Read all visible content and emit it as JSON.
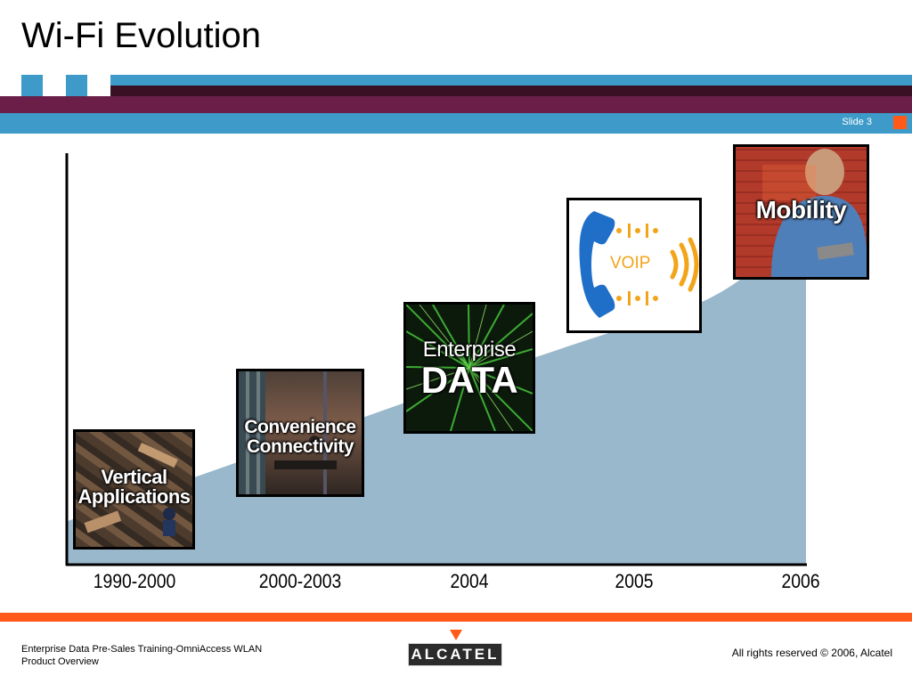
{
  "title": "Wi-Fi Evolution",
  "slide_label": "Slide 3",
  "colors": {
    "brand_blue": "#3e9bc9",
    "brand_maroon": "#6b1f48",
    "accent_orange": "#ff5a1a",
    "curve_fill": "#9ab8cc"
  },
  "timeline": {
    "years": [
      "1990-2000",
      "2000-2003",
      "2004",
      "2005",
      "2006"
    ],
    "stages": [
      {
        "label_line1": "Vertical",
        "label_line2": "Applications",
        "image": "warehouse-conveyor-photo"
      },
      {
        "label_line1": "Convenience",
        "label_line2": "Connectivity",
        "image": "office-meeting-photo"
      },
      {
        "label_line1": "Enterprise",
        "label_line2": "DATA",
        "image": "data-stream-photo"
      },
      {
        "label_line1": "VOIP",
        "label_line2": "",
        "image": "telephone-handset-icon"
      },
      {
        "label_line1": "Mobility",
        "label_line2": "",
        "image": "mobile-worker-photo"
      }
    ]
  },
  "footer": {
    "left": "Enterprise Data Pre-Sales Training-OmniAccess WLAN Product Overview",
    "right": "All rights reserved © 2006, Alcatel",
    "logo": "ALCATEL"
  }
}
